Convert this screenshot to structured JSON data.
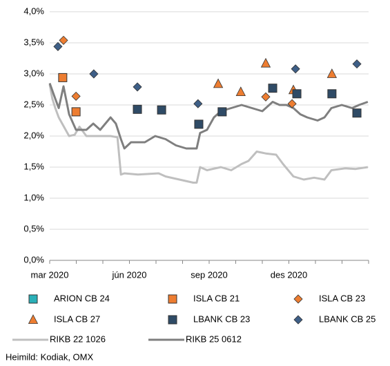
{
  "chart_data": {
    "type": "line",
    "source": "Heimild: Kodiak, OMX",
    "xlim": [
      0,
      12
    ],
    "xticks": [
      {
        "value": 0,
        "label": "mar 2020"
      },
      {
        "value": 3,
        "label": "jún 2020"
      },
      {
        "value": 6,
        "label": "sep 2020"
      },
      {
        "value": 9,
        "label": "des 2020"
      }
    ],
    "xminorticks": [
      0,
      1,
      2,
      3,
      4,
      5,
      6,
      7,
      8,
      9,
      10,
      11,
      12
    ],
    "ylim": [
      0,
      4
    ],
    "yticks": [
      {
        "value": 0,
        "label": "0,0%"
      },
      {
        "value": 0.5,
        "label": "0,5%"
      },
      {
        "value": 1,
        "label": "1,0%"
      },
      {
        "value": 1.5,
        "label": "1,5%"
      },
      {
        "value": 2,
        "label": "2,0%"
      },
      {
        "value": 2.5,
        "label": "2,5%"
      },
      {
        "value": 3,
        "label": "3,0%"
      },
      {
        "value": 3.5,
        "label": "3,5%"
      },
      {
        "value": 4,
        "label": "4,0%"
      }
    ],
    "grid": true,
    "series": [
      {
        "name": "ARION CB 24",
        "type": "scatter",
        "marker": "square",
        "color": "#2ab0b8",
        "x": [],
        "values": []
      },
      {
        "name": "ISLA CB 21",
        "type": "scatter",
        "marker": "square",
        "color": "#ed7d31",
        "x": [
          0.49,
          0.99
        ],
        "values": [
          2.94,
          2.39
        ]
      },
      {
        "name": "ISLA CB 23",
        "type": "scatter",
        "marker": "diamond",
        "color": "#ed7d31",
        "x": [
          0.52,
          0.99,
          8.13,
          9.12
        ],
        "values": [
          3.54,
          2.64,
          2.63,
          2.52
        ]
      },
      {
        "name": "ISLA CB 27",
        "type": "scatter",
        "marker": "triangle",
        "color": "#ed7d31",
        "x": [
          6.34,
          7.19,
          8.13,
          9.17,
          10.62
        ],
        "values": [
          2.84,
          2.71,
          3.17,
          2.74,
          3.0
        ]
      },
      {
        "name": "LBANK CB 23",
        "type": "scatter",
        "marker": "square",
        "color": "#2f4b66",
        "x": [
          3.3,
          4.21,
          5.61,
          6.49,
          8.39,
          9.3,
          10.62,
          11.56
        ],
        "values": [
          2.43,
          2.42,
          2.19,
          2.39,
          2.77,
          2.68,
          2.68,
          2.37
        ]
      },
      {
        "name": "LBANK CB 25",
        "type": "scatter",
        "marker": "diamond",
        "color": "#3e5f87",
        "x": [
          0.31,
          1.66,
          3.3,
          5.58,
          9.25,
          11.56
        ],
        "values": [
          3.44,
          3.0,
          2.79,
          2.52,
          3.08,
          3.16
        ]
      },
      {
        "name": "RIKB 22 1026",
        "type": "line",
        "color": "#bfbfbf",
        "x": [
          0,
          0.1,
          0.21,
          0.34,
          0.47,
          0.6,
          0.73,
          0.94,
          1.12,
          1.38,
          1.77,
          2.29,
          2.55,
          2.68,
          2.81,
          3.32,
          4.1,
          4.36,
          4.88,
          5.4,
          5.53,
          5.66,
          5.92,
          6.44,
          6.83,
          7.22,
          7.48,
          7.79,
          8.13,
          8.52,
          8.78,
          9.17,
          9.56,
          9.95,
          10.34,
          10.6,
          11.12,
          11.51,
          11.97
        ],
        "values": [
          2.83,
          2.6,
          2.45,
          2.3,
          2.2,
          2.1,
          2.0,
          2.02,
          2.15,
          2.0,
          2.0,
          2.0,
          1.98,
          1.38,
          1.4,
          1.38,
          1.4,
          1.35,
          1.3,
          1.25,
          1.25,
          1.5,
          1.45,
          1.5,
          1.45,
          1.55,
          1.6,
          1.75,
          1.72,
          1.7,
          1.55,
          1.35,
          1.3,
          1.33,
          1.3,
          1.45,
          1.48,
          1.47,
          1.5
        ]
      },
      {
        "name": "RIKB 25 0612",
        "type": "line",
        "color": "#7f7f7f",
        "x": [
          0,
          0.21,
          0.34,
          0.52,
          0.73,
          0.99,
          1.38,
          1.64,
          1.9,
          2.29,
          2.49,
          2.68,
          2.81,
          3.06,
          3.58,
          3.97,
          4.36,
          4.75,
          5.14,
          5.53,
          5.66,
          5.92,
          6.18,
          6.44,
          6.83,
          7.22,
          7.61,
          8.0,
          8.39,
          8.65,
          8.91,
          9.17,
          9.43,
          9.69,
          10.08,
          10.34,
          10.6,
          10.99,
          11.38,
          11.64,
          11.97
        ],
        "values": [
          2.85,
          2.6,
          2.45,
          2.8,
          2.35,
          2.1,
          2.1,
          2.2,
          2.1,
          2.3,
          2.2,
          1.95,
          1.8,
          1.9,
          1.9,
          2.0,
          1.95,
          1.85,
          1.8,
          1.8,
          2.05,
          2.1,
          2.3,
          2.4,
          2.45,
          2.5,
          2.45,
          2.4,
          2.55,
          2.5,
          2.5,
          2.45,
          2.35,
          2.3,
          2.25,
          2.3,
          2.45,
          2.5,
          2.45,
          2.5,
          2.55
        ]
      }
    ]
  }
}
